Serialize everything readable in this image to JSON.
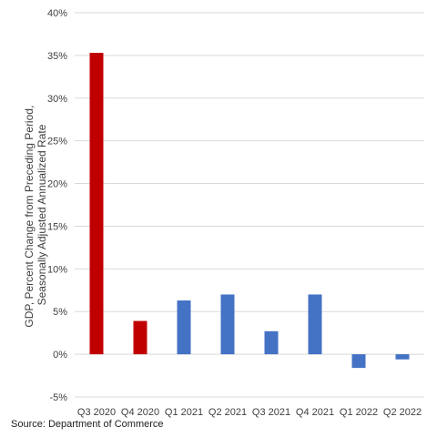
{
  "chart_data": {
    "type": "bar",
    "categories": [
      "Q3 2020",
      "Q4 2020",
      "Q1 2021",
      "Q2 2021",
      "Q3 2021",
      "Q4 2021",
      "Q1 2022",
      "Q2 2022"
    ],
    "values": [
      35.3,
      3.9,
      6.3,
      7.0,
      2.7,
      7.0,
      -1.6,
      -0.6
    ],
    "bar_colors": [
      "#c00000",
      "#c00000",
      "#4472c4",
      "#4472c4",
      "#4472c4",
      "#4472c4",
      "#4472c4",
      "#4472c4"
    ],
    "ylabel_lines": [
      "GDP, Percent Change from Preceding Period,",
      "Seasonally Adjusted Annualized Rate"
    ],
    "ylim": [
      -5,
      40
    ],
    "yticks": [
      -5,
      0,
      5,
      10,
      15,
      20,
      25,
      30,
      35,
      40
    ],
    "ytick_labels": [
      "-5%",
      "0%",
      "5%",
      "10%",
      "15%",
      "20%",
      "25%",
      "30%",
      "35%",
      "40%"
    ],
    "grid": true,
    "title": "",
    "xlabel": ""
  },
  "source_text": "Source: Department of Commerce",
  "colors": {
    "grid": "#d9d9d9",
    "axis_text": "#404040"
  }
}
